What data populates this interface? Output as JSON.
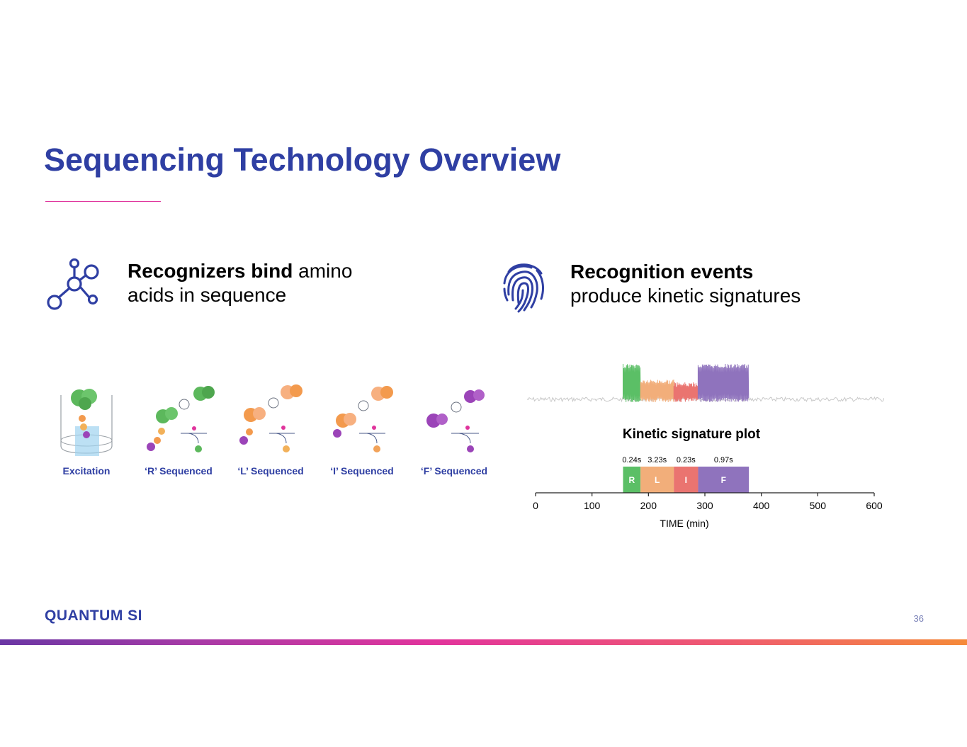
{
  "slide": {
    "title": "Sequencing Technology Overview",
    "page_number": "36",
    "logo_text": "QUANTUM SI",
    "accent_color": "#2f3fa3",
    "rule_color": "#e0349c"
  },
  "left_panel": {
    "icon": "molecule-network-icon",
    "heading_bold": "Recognizers bind",
    "heading_rest_line1": " amino",
    "heading_line2": "acids in sequence",
    "steps": [
      {
        "label": "Excitation",
        "color": "#5cb85c"
      },
      {
        "label": "‘R’ Sequenced",
        "color": "#5cb85c"
      },
      {
        "label": "‘L’ Sequenced",
        "color": "#f39a4d"
      },
      {
        "label": "‘I’ Sequenced",
        "color": "#f2a35a"
      },
      {
        "label": "‘F’ Sequenced",
        "color": "#9b44b8"
      }
    ]
  },
  "right_panel": {
    "icon": "fingerprint-icon",
    "heading_bold": "Recognition events",
    "heading_line2": "produce kinetic signatures"
  },
  "chart_data": {
    "type": "bar",
    "title": "Kinetic signature plot",
    "xlabel": "TIME (min)",
    "xlim": [
      0,
      600
    ],
    "xticks": [
      0,
      100,
      200,
      300,
      400,
      500,
      600
    ],
    "segments": [
      {
        "name": "R",
        "start": 155,
        "end": 186,
        "duration_label": "0.24s",
        "color": "#5bbf66"
      },
      {
        "name": "L",
        "start": 186,
        "end": 245,
        "duration_label": "3.23s",
        "color": "#f2ae7a"
      },
      {
        "name": "I",
        "start": 245,
        "end": 288,
        "duration_label": "0.23s",
        "color": "#ea7470"
      },
      {
        "name": "F",
        "start": 288,
        "end": 378,
        "duration_label": "0.97s",
        "color": "#8f73bd"
      }
    ]
  }
}
